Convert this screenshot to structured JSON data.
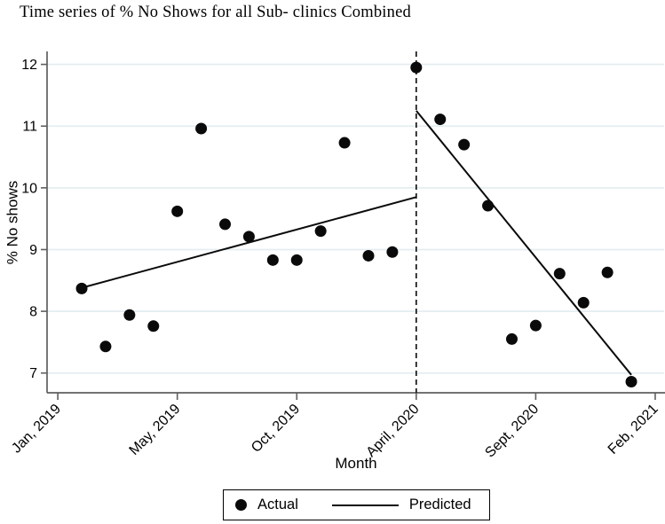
{
  "chart_data": {
    "type": "scatter",
    "title": "Time series of % No Shows for all Sub- clinics Combined",
    "xlabel": "Month",
    "ylabel": "% No shows",
    "grid": "horizontal",
    "ylim": [
      6.68,
      12.21
    ],
    "xlim": [
      -0.45,
      25.41
    ],
    "yticks": [
      7,
      8,
      9,
      10,
      11,
      12
    ],
    "xticks": [
      {
        "x": 0,
        "label": "Jan, 2019"
      },
      {
        "x": 5,
        "label": "May, 2019"
      },
      {
        "x": 10,
        "label": "Oct, 2019"
      },
      {
        "x": 15,
        "label": "April, 2020"
      },
      {
        "x": 20,
        "label": "Sept, 2020"
      },
      {
        "x": 25,
        "label": "Feb, 2021"
      }
    ],
    "series": [
      {
        "name": "Actual",
        "kind": "scatter",
        "points": [
          {
            "x": 1,
            "y": 8.37
          },
          {
            "x": 2,
            "y": 7.43
          },
          {
            "x": 3,
            "y": 7.94
          },
          {
            "x": 4,
            "y": 7.76
          },
          {
            "x": 5,
            "y": 9.62
          },
          {
            "x": 6,
            "y": 10.96
          },
          {
            "x": 7,
            "y": 9.41
          },
          {
            "x": 8,
            "y": 9.21
          },
          {
            "x": 9,
            "y": 8.83
          },
          {
            "x": 10,
            "y": 8.83
          },
          {
            "x": 11,
            "y": 9.3
          },
          {
            "x": 12,
            "y": 10.73
          },
          {
            "x": 13,
            "y": 8.9
          },
          {
            "x": 14,
            "y": 8.96
          },
          {
            "x": 15,
            "y": 11.95
          },
          {
            "x": 16,
            "y": 11.11
          },
          {
            "x": 17,
            "y": 10.7
          },
          {
            "x": 18,
            "y": 9.71
          },
          {
            "x": 19,
            "y": 7.55
          },
          {
            "x": 20,
            "y": 7.77
          },
          {
            "x": 21,
            "y": 8.61
          },
          {
            "x": 22,
            "y": 8.14
          },
          {
            "x": 23,
            "y": 8.63
          },
          {
            "x": 24,
            "y": 6.86
          }
        ]
      },
      {
        "name": "Predicted",
        "kind": "line",
        "segments": [
          {
            "x1": 1,
            "y1": 8.38,
            "x2": 15,
            "y2": 9.85
          },
          {
            "x1": 15,
            "y1": 11.25,
            "x2": 24,
            "y2": 6.97
          }
        ]
      }
    ],
    "vline": {
      "x": 15,
      "style": "dashed"
    },
    "legend": {
      "position": "bottom",
      "items": [
        "Actual",
        "Predicted"
      ]
    },
    "colors": {
      "marker": "#0a0a0a",
      "line": "#0a0a0a",
      "axis": "#5f5f5f",
      "gridline": "#e4edf1",
      "text": "#000000",
      "background": "#ffffff"
    }
  }
}
